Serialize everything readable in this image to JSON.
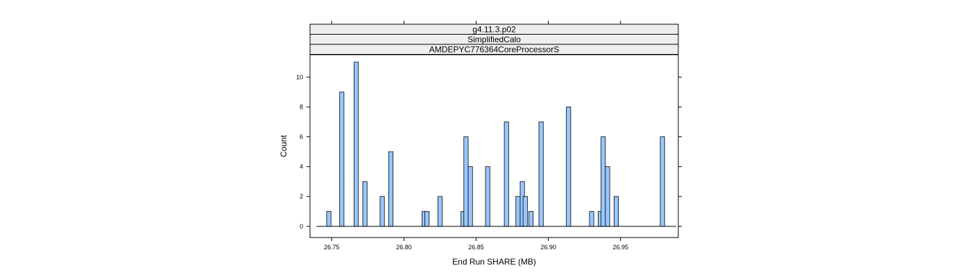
{
  "chart_data": {
    "type": "bar",
    "strips": [
      "g4.11.3.p02",
      "SimplifiedCalo",
      "AMDEPYC776364CoreProcessorS"
    ],
    "xlabel": "End Run SHARE (MB)",
    "ylabel": "Count",
    "xlim": [
      26.735,
      26.99
    ],
    "ylim": [
      -0.75,
      11.5
    ],
    "x_ticks": [
      26.75,
      26.8,
      26.85,
      26.9,
      26.95
    ],
    "x_tick_labels": [
      "26.75",
      "26.80",
      "26.85",
      "26.90",
      "26.95"
    ],
    "y_ticks": [
      0,
      2,
      4,
      6,
      8,
      10
    ],
    "y_tick_labels": [
      "0",
      "2",
      "4",
      "6",
      "8",
      "10"
    ],
    "bin_width": 0.003,
    "baseline": [
      26.7395,
      26.9885
    ],
    "bars": [
      {
        "x": 26.748,
        "count": 1
      },
      {
        "x": 26.757,
        "count": 9
      },
      {
        "x": 26.767,
        "count": 11
      },
      {
        "x": 26.773,
        "count": 3
      },
      {
        "x": 26.785,
        "count": 2
      },
      {
        "x": 26.791,
        "count": 5
      },
      {
        "x": 26.814,
        "count": 1
      },
      {
        "x": 26.816,
        "count": 1
      },
      {
        "x": 26.825,
        "count": 2
      },
      {
        "x": 26.841,
        "count": 1
      },
      {
        "x": 26.843,
        "count": 6
      },
      {
        "x": 26.846,
        "count": 4
      },
      {
        "x": 26.858,
        "count": 4
      },
      {
        "x": 26.871,
        "count": 7
      },
      {
        "x": 26.879,
        "count": 2
      },
      {
        "x": 26.882,
        "count": 3
      },
      {
        "x": 26.884,
        "count": 2
      },
      {
        "x": 26.888,
        "count": 1
      },
      {
        "x": 26.895,
        "count": 7
      },
      {
        "x": 26.914,
        "count": 8
      },
      {
        "x": 26.93,
        "count": 1
      },
      {
        "x": 26.936,
        "count": 1
      },
      {
        "x": 26.938,
        "count": 6
      },
      {
        "x": 26.941,
        "count": 4
      },
      {
        "x": 26.947,
        "count": 2
      },
      {
        "x": 26.979,
        "count": 6
      }
    ],
    "bar_fill": "#99c7ff",
    "bar_stroke": "#000000",
    "strip_fill": "#eeeeee",
    "grid": false,
    "legend": "none"
  }
}
